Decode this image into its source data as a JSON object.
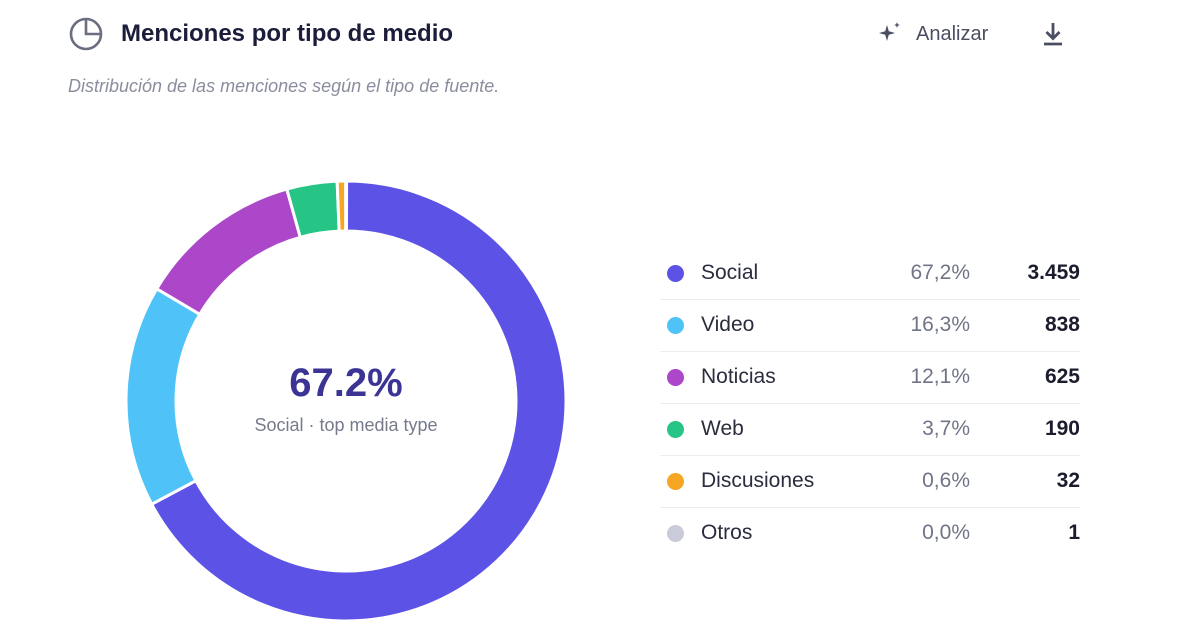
{
  "header": {
    "title": "Menciones por tipo de medio",
    "analyze_label": "Analizar",
    "subtitle": "Distribución de las menciones según el tipo de fuente."
  },
  "icons": {
    "title": "pie-chart-icon",
    "analyze": "sparkle-icon",
    "download": "download-icon"
  },
  "center": {
    "value": "67.2%",
    "label": "Social · top media type"
  },
  "legend": [
    {
      "name": "Social",
      "pct": "67,2%",
      "count": "3.459",
      "color": "#5c52e6"
    },
    {
      "name": "Video",
      "pct": "16,3%",
      "count": "838",
      "color": "#4fc3f7"
    },
    {
      "name": "Noticias",
      "pct": "12,1%",
      "count": "625",
      "color": "#ab47c8"
    },
    {
      "name": "Web",
      "pct": "3,7%",
      "count": "190",
      "color": "#26c485"
    },
    {
      "name": "Discusiones",
      "pct": "0,6%",
      "count": "32",
      "color": "#f5a623"
    },
    {
      "name": "Otros",
      "pct": "0,0%",
      "count": "1",
      "color": "#c9cbd8"
    }
  ],
  "chart_data": {
    "type": "pie",
    "variant": "donut",
    "title": "Menciones por tipo de medio",
    "subtitle": "Distribución de las menciones según el tipo de fuente.",
    "categories": [
      "Social",
      "Video",
      "Noticias",
      "Web",
      "Discusiones",
      "Otros"
    ],
    "values": [
      3459,
      838,
      625,
      190,
      32,
      1
    ],
    "percentages": [
      67.2,
      16.3,
      12.1,
      3.7,
      0.6,
      0.0
    ],
    "colors": [
      "#5c52e6",
      "#4fc3f7",
      "#ab47c8",
      "#26c485",
      "#f5a623",
      "#c9cbd8"
    ],
    "legend_placement": "right"
  }
}
